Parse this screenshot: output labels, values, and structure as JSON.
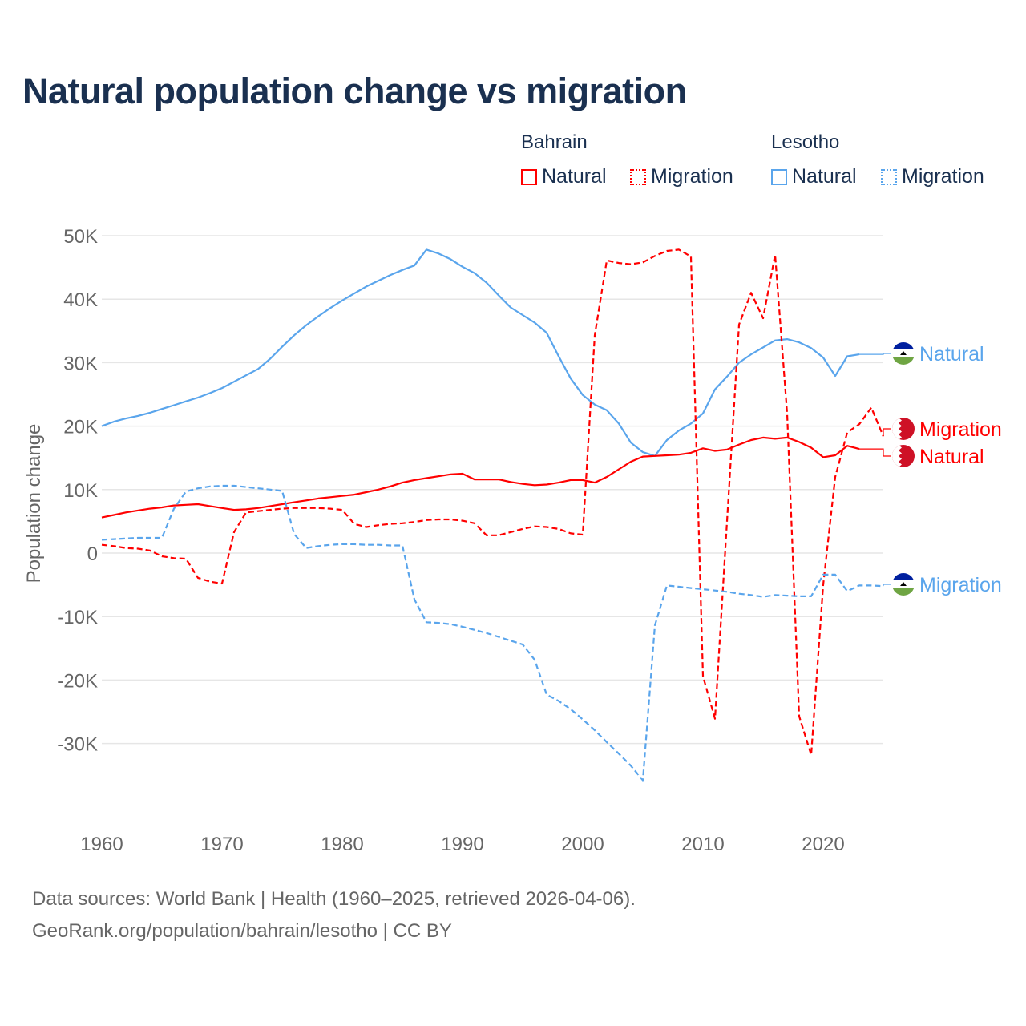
{
  "title": "Natural population change vs migration",
  "legend": {
    "groups": [
      {
        "name": "Bahrain",
        "items": [
          "Natural",
          "Migration"
        ]
      },
      {
        "name": "Lesotho",
        "items": [
          "Natural",
          "Migration"
        ]
      }
    ]
  },
  "colors": {
    "bahrain": "#ff0000",
    "lesotho": "#5aa5ec",
    "text": "#1a3050",
    "axis": "#666666"
  },
  "footer": [
    "Data sources: World Bank | Health (1960–2025, retrieved 2026-04-06).",
    "GeoRank.org/population/bahrain/lesotho | CC BY"
  ],
  "chart_data": {
    "type": "line",
    "title": "Natural population change vs migration",
    "ylabel": "Population change",
    "xlabel": "",
    "xlim": [
      1960,
      2025
    ],
    "ylim": [
      -38000,
      52000
    ],
    "x_ticks": [
      1960,
      1970,
      1980,
      1990,
      2000,
      2010,
      2020
    ],
    "y_ticks": [
      {
        "v": 50000,
        "l": "50K"
      },
      {
        "v": 40000,
        "l": "40K"
      },
      {
        "v": 30000,
        "l": "30K"
      },
      {
        "v": 20000,
        "l": "20K"
      },
      {
        "v": 10000,
        "l": "10K"
      },
      {
        "v": 0,
        "l": "0"
      },
      {
        "v": -10000,
        "l": "-10K"
      },
      {
        "v": -20000,
        "l": "-20K"
      },
      {
        "v": -30000,
        "l": "-30K"
      }
    ],
    "grid": true,
    "legend_position": "top-right",
    "series": [
      {
        "name": "Lesotho Natural",
        "label": "Natural",
        "country": "lesotho",
        "dash": false,
        "start": 1960,
        "values": [
          20.0,
          20.7,
          21.2,
          21.6,
          22.1,
          22.7,
          23.3,
          23.9,
          24.5,
          25.2,
          26.0,
          27.0,
          28.0,
          29.0,
          30.6,
          32.5,
          34.3,
          35.9,
          37.3,
          38.6,
          39.8,
          40.9,
          42.0,
          42.9,
          43.8,
          44.6,
          45.3,
          47.8,
          47.2,
          46.3,
          45.1,
          44.1,
          42.6,
          40.6,
          38.7,
          37.5,
          36.3,
          34.7,
          31.0,
          27.5,
          24.9,
          23.4,
          22.5,
          20.4,
          17.4,
          15.9,
          15.3,
          17.8,
          19.3,
          20.4,
          22.0,
          25.8,
          27.8,
          30.0,
          31.3,
          32.4,
          33.5,
          33.7,
          33.2,
          32.3,
          30.8,
          27.9,
          31.0,
          31.3
        ]
      },
      {
        "name": "Bahrain Natural",
        "label": "Natural",
        "country": "bahrain",
        "dash": false,
        "start": 1960,
        "values": [
          5.6,
          6.0,
          6.4,
          6.7,
          7.0,
          7.2,
          7.5,
          7.6,
          7.7,
          7.4,
          7.1,
          6.8,
          6.9,
          7.1,
          7.4,
          7.7,
          8.0,
          8.3,
          8.6,
          8.8,
          9.0,
          9.2,
          9.6,
          10.0,
          10.5,
          11.1,
          11.5,
          11.8,
          12.1,
          12.4,
          12.5,
          11.6,
          11.6,
          11.6,
          11.2,
          10.9,
          10.7,
          10.8,
          11.1,
          11.5,
          11.5,
          11.1,
          12.0,
          13.2,
          14.4,
          15.2,
          15.3,
          15.4,
          15.5,
          15.8,
          16.5,
          16.1,
          16.3,
          17.1,
          17.8,
          18.2,
          18.0,
          18.2,
          17.5,
          16.6,
          15.1,
          15.4,
          16.9,
          16.4
        ]
      },
      {
        "name": "Bahrain Migration",
        "label": "Migration",
        "country": "bahrain",
        "dash": true,
        "start": 1960,
        "values": [
          1.3,
          1.1,
          0.8,
          0.7,
          0.4,
          -0.5,
          -0.8,
          -0.9,
          -3.9,
          -4.5,
          -4.8,
          3.3,
          6.4,
          6.6,
          6.8,
          7.0,
          7.1,
          7.1,
          7.1,
          7.0,
          6.8,
          4.6,
          4.1,
          4.4,
          4.6,
          4.7,
          4.9,
          5.2,
          5.3,
          5.3,
          5.1,
          4.7,
          2.8,
          2.8,
          3.3,
          3.8,
          4.2,
          4.1,
          3.8,
          3.1,
          2.9,
          34.3,
          46.1,
          45.7,
          45.5,
          45.8,
          46.8,
          47.6,
          47.8,
          46.7,
          -19.4,
          -26.1,
          5.0,
          36.0,
          41.0,
          37.0,
          47.0,
          22.0,
          -25.7,
          -31.8,
          -5.0,
          12.0,
          19.0,
          20.3,
          22.9,
          18.4
        ]
      },
      {
        "name": "Lesotho Migration",
        "label": "Migration",
        "country": "lesotho",
        "dash": true,
        "start": 1960,
        "values": [
          2.1,
          2.2,
          2.3,
          2.4,
          2.4,
          2.4,
          7.0,
          9.7,
          10.2,
          10.5,
          10.6,
          10.6,
          10.4,
          10.2,
          10.0,
          9.8,
          3.0,
          0.8,
          1.1,
          1.3,
          1.4,
          1.4,
          1.3,
          1.3,
          1.2,
          1.2,
          -7.3,
          -10.9,
          -11.0,
          -11.2,
          -11.6,
          -12.1,
          -12.6,
          -13.2,
          -13.8,
          -14.4,
          -16.8,
          -22.3,
          -23.3,
          -24.6,
          -26.2,
          -27.9,
          -29.8,
          -31.6,
          -33.5,
          -35.8,
          -11.4,
          -5.1,
          -5.3,
          -5.5,
          -5.7,
          -5.9,
          -6.1,
          -6.4,
          -6.6,
          -6.9,
          -6.6,
          -6.7,
          -6.8,
          -6.8,
          -3.4,
          -3.4,
          -6.0,
          -5.1,
          -5.1,
          -5.2
        ]
      }
    ],
    "value_unit": "thousands"
  }
}
